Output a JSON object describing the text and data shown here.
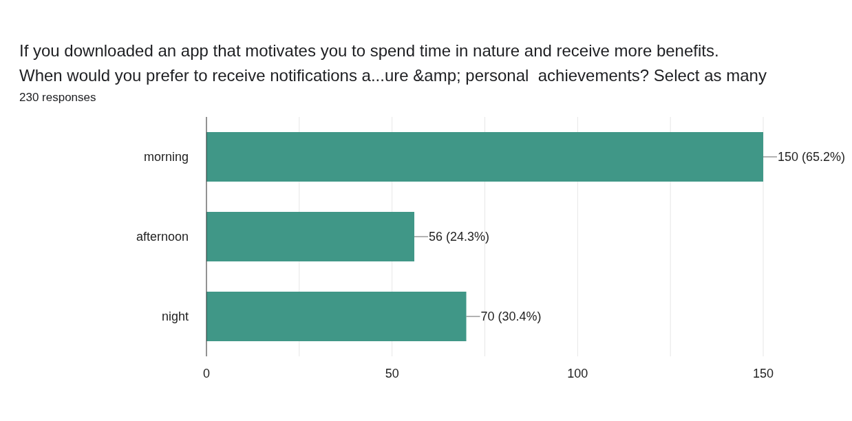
{
  "chart_data": {
    "type": "bar",
    "orientation": "horizontal",
    "title": "If you downloaded an app that motivates you to spend time in nature and receive more benefits.\nWhen would you prefer to receive notifications a...ure &amp; personal  achievements? Select as many",
    "subtitle": "230 responses",
    "categories": [
      "morning",
      "afternoon",
      "night"
    ],
    "values": [
      150,
      56,
      70
    ],
    "value_labels": [
      "150 (65.2%)",
      "56 (24.3%)",
      "70 (30.4%)"
    ],
    "color": "#409787",
    "xlim": [
      0,
      150
    ],
    "xticks": [
      0,
      {
        "value": 25,
        "label": null
      },
      50,
      {
        "value": 75,
        "label": null
      },
      100,
      {
        "value": 125,
        "label": null
      },
      150
    ],
    "grid": "x"
  }
}
